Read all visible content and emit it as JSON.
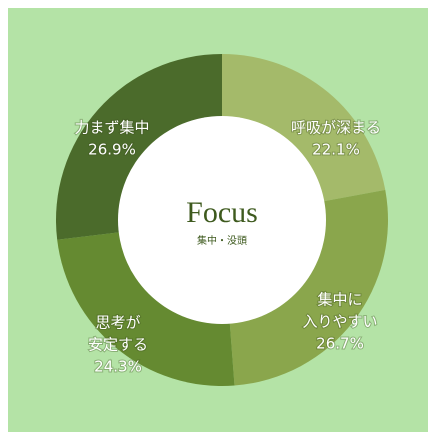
{
  "chart_data": {
    "type": "donut",
    "categories": [
      [
        "呼吸が深まる"
      ],
      [
        "集中に",
        "入りやすい"
      ],
      [
        "思考が",
        "安定する"
      ],
      [
        "力まず集中"
      ]
    ],
    "values": [
      22.1,
      26.7,
      24.3,
      26.9
    ],
    "value_labels": [
      "22.1%",
      "26.7%",
      "24.3%",
      "26.9%"
    ],
    "colors": [
      "#a4ba6a",
      "#8aa64c",
      "#658a31",
      "#4b6b2b"
    ],
    "center_title": "Focus",
    "center_subtitle": "集中・没頭"
  }
}
